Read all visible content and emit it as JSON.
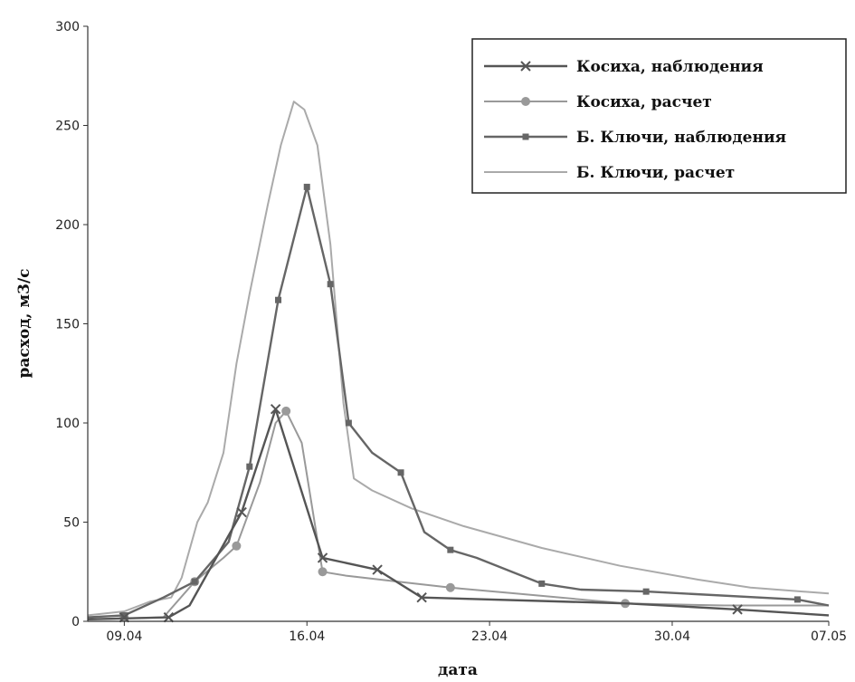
{
  "chart_data": {
    "type": "line",
    "xlabel": "дата",
    "ylabel": "расход, м3/с",
    "x_tick_labels": [
      "09.04",
      "16.04",
      "23.04",
      "30.04",
      "07.05"
    ],
    "y_tick_labels": [
      "0",
      "50",
      "100",
      "150",
      "200",
      "250",
      "300"
    ],
    "xlim": [
      7.6,
      36.0
    ],
    "ylim": [
      0,
      300
    ],
    "x_ticks": [
      9,
      16,
      23,
      30,
      37
    ],
    "y_ticks": [
      0,
      50,
      100,
      150,
      200,
      250,
      300
    ],
    "grid": false,
    "legend_position": "top-right",
    "series": [
      {
        "name": "Косиха, наблюдения",
        "color": "#555555",
        "marker": "x",
        "x": [
          7.6,
          10.7,
          11.5,
          13.5,
          14.8,
          16.6,
          18.7,
          20.4,
          28.3,
          32.5,
          36.0
        ],
        "y": [
          1,
          2,
          8,
          55,
          107,
          32,
          26,
          12,
          9,
          6,
          3
        ],
        "marker_x": [
          9.0,
          10.7,
          13.5,
          14.8,
          16.6,
          18.7,
          20.4,
          32.5
        ],
        "marker_y": [
          2,
          2,
          55,
          107,
          32,
          26,
          12,
          6
        ]
      },
      {
        "name": "Косиха, расчет",
        "color": "#999999",
        "marker": "circle",
        "x": [
          7.6,
          10.5,
          11.7,
          12.8,
          13.3,
          14.2,
          14.8,
          15.2,
          15.8,
          16.6,
          17.5,
          19.5,
          21.5,
          24.0,
          28.2,
          32.0,
          36.0
        ],
        "y": [
          1,
          2,
          20,
          32,
          38,
          70,
          100,
          106,
          90,
          25,
          23,
          20,
          17,
          14,
          9,
          8,
          8
        ],
        "marker_x": [
          9.0,
          11.7,
          13.3,
          15.2,
          16.6,
          21.5,
          28.2
        ],
        "marker_y": [
          2,
          20,
          38,
          106,
          25,
          17,
          9
        ]
      },
      {
        "name": "Б. Ключи, наблюдения",
        "color": "#666666",
        "marker": "square",
        "x": [
          7.6,
          9.0,
          10.5,
          11.7,
          13.0,
          13.8,
          14.9,
          16.0,
          16.9,
          17.6,
          18.5,
          19.6,
          20.5,
          21.5,
          22.5,
          25.0,
          26.5,
          29.0,
          34.8,
          36.0
        ],
        "y": [
          2,
          3,
          12,
          20,
          40,
          78,
          162,
          219,
          170,
          100,
          85,
          75,
          45,
          36,
          32,
          19,
          16,
          15,
          11,
          8
        ],
        "marker_x": [
          9.0,
          11.7,
          13.8,
          14.9,
          16.0,
          16.9,
          17.6,
          19.6,
          21.5,
          25.0,
          29.0,
          34.8
        ],
        "marker_y": [
          3,
          20,
          78,
          162,
          219,
          170,
          100,
          75,
          36,
          19,
          15,
          11
        ]
      },
      {
        "name": "Б. Ключи, расчет",
        "color": "#aaaaaa",
        "marker": "none",
        "x": [
          7.6,
          9.0,
          10.0,
          10.8,
          11.2,
          11.8,
          12.2,
          12.8,
          13.3,
          13.8,
          14.5,
          15.0,
          15.5,
          15.9,
          16.4,
          16.9,
          17.4,
          17.8,
          18.5,
          20.0,
          22.0,
          25.0,
          28.0,
          31.0,
          33.0,
          36.0
        ],
        "y": [
          3,
          5,
          10,
          12,
          22,
          50,
          60,
          85,
          130,
          165,
          210,
          240,
          262,
          258,
          240,
          190,
          110,
          72,
          66,
          57,
          48,
          37,
          28,
          21,
          17,
          14
        ]
      }
    ]
  }
}
